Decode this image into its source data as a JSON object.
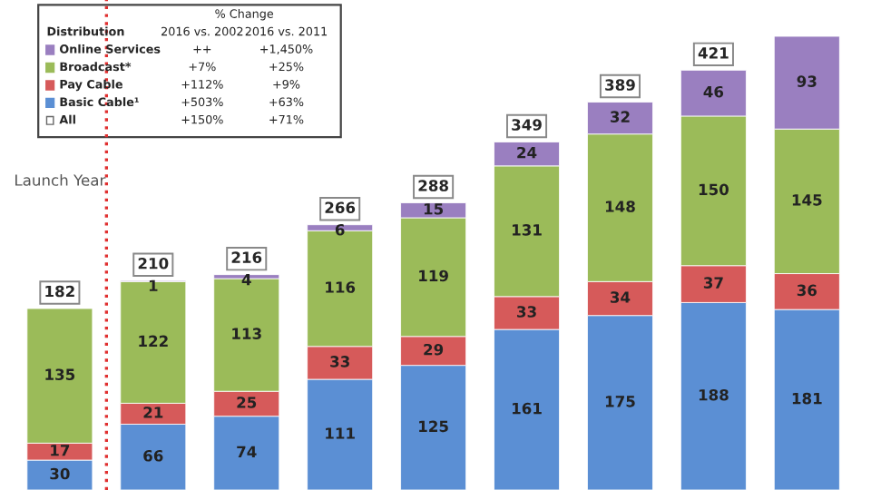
{
  "chart_data": {
    "type": "bar",
    "stacked": true,
    "data_labels": true,
    "legend": "top left",
    "legend_title": "Distribution",
    "categories": [
      null,
      null,
      null,
      null,
      null,
      null,
      null,
      null,
      null
    ],
    "series": [
      {
        "name": "Basic Cable¹",
        "color": "#5b8fd4",
        "values": [
          30,
          66,
          74,
          111,
          125,
          161,
          175,
          188,
          181
        ]
      },
      {
        "name": "Pay Cable",
        "color": "#d65a5a",
        "values": [
          17,
          21,
          25,
          33,
          29,
          33,
          34,
          37,
          36
        ]
      },
      {
        "name": "Broadcast*",
        "color": "#9bbb59",
        "values": [
          135,
          122,
          113,
          116,
          119,
          131,
          148,
          150,
          145
        ]
      },
      {
        "name": "Online Services",
        "color": "#9a7fc0",
        "values": [
          null,
          1,
          4,
          6,
          15,
          24,
          32,
          46,
          93
        ]
      }
    ],
    "totals": [
      "182",
      "210",
      "216",
      "266",
      "288",
      "349",
      "389",
      "421",
      null
    ],
    "annotations": [
      "Launch Year",
      "% Change",
      "2016 vs. 2002",
      "2016 vs. 2011",
      "++",
      "+1,450%",
      "+7%",
      "+25%",
      "+112%",
      "+9%",
      "+503%",
      "+63%",
      "All",
      "+150%",
      "+71%"
    ]
  }
}
